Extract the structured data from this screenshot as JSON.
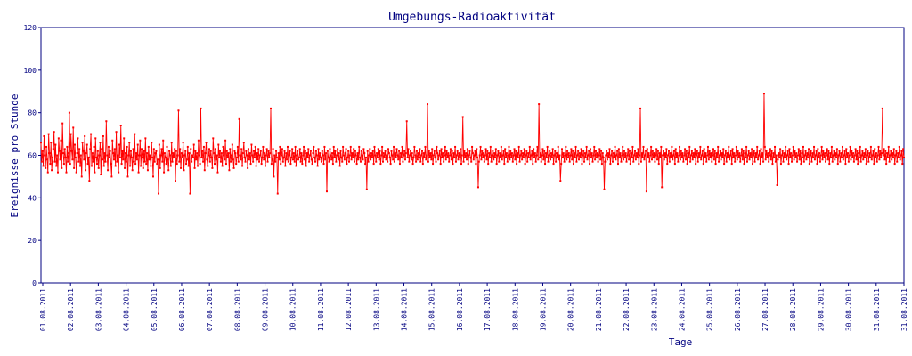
{
  "chart_data": {
    "type": "line",
    "title": "Umgebungs-Radioaktivität",
    "xlabel": "Tage",
    "ylabel": "Ereignisse pro Stunde",
    "ylim": [
      0,
      120
    ],
    "yticks": [
      "0",
      "20",
      "40",
      "60",
      "80",
      "100",
      "120"
    ],
    "xticks": [
      "01.08.2011",
      "02.08.2011",
      "03.08.2011",
      "04.08.2011",
      "05.08.2011",
      "06.08.2011",
      "07.08.2011",
      "08.08.2011",
      "09.08.2011",
      "10.08.2011",
      "11.08.2011",
      "12.08.2011",
      "13.08.2011",
      "14.08.2011",
      "15.08.2011",
      "16.08.2011",
      "17.08.2011",
      "18.08.2011",
      "19.08.2011",
      "20.08.2011",
      "21.08.2011",
      "22.08.2011",
      "23.08.2011",
      "24.08.2011",
      "25.08.2011",
      "26.08.2011",
      "27.08.2011",
      "28.08.2011",
      "29.08.2011",
      "30.08.2011",
      "31.08.2011",
      "31.08.2011"
    ],
    "grid": false,
    "series_color": "#ff0000",
    "axis_color": "#000080",
    "series": [
      {
        "name": "",
        "x_start": "01.08.2011 00:00",
        "x_step": "1 hour",
        "values": [
          66,
          57,
          62,
          55,
          69,
          60,
          54,
          64,
          58,
          52,
          70,
          61,
          56,
          66,
          53,
          59,
          63,
          71,
          57,
          65,
          55,
          60,
          52,
          68,
          62,
          58,
          67,
          54,
          75,
          61,
          56,
          63,
          59,
          52,
          64,
          57,
          61,
          80,
          56,
          70,
          62,
          58,
          73,
          54,
          65,
          59,
          52,
          61,
          68,
          57,
          63,
          55,
          60,
          50,
          66,
          62,
          58,
          69,
          53,
          61,
          65,
          56,
          59,
          48,
          63,
          70,
          55,
          61,
          57,
          64,
          52,
          68,
          59,
          56,
          62,
          54,
          60,
          66,
          51,
          63,
          58,
          69,
          55,
          61,
          57,
          76,
          60,
          53,
          64,
          59,
          62,
          56,
          50,
          67,
          61,
          58,
          63,
          55,
          71,
          57,
          60,
          52,
          65,
          59,
          74,
          56,
          62,
          58,
          68,
          54,
          61,
          57,
          64,
          50,
          60,
          66,
          55,
          62,
          59,
          53,
          63,
          57,
          70,
          56,
          61,
          58,
          65,
          52,
          60,
          67,
          55,
          63,
          59,
          54,
          62,
          57,
          68,
          56,
          61,
          53,
          64,
          58,
          60,
          55,
          66,
          59,
          50,
          63,
          57,
          61,
          62,
          56,
          58,
          42,
          65,
          54,
          60,
          63,
          57,
          67,
          52,
          61,
          59,
          56,
          64,
          58,
          53,
          62,
          60,
          55,
          66,
          57,
          61,
          59,
          63,
          48,
          62,
          56,
          60,
          81,
          57,
          63,
          54,
          61,
          59,
          66,
          53,
          60,
          62,
          56,
          58,
          64,
          55,
          61,
          42,
          63,
          57,
          60,
          59,
          65,
          54,
          62,
          58,
          61,
          55,
          67,
          60,
          56,
          82,
          59,
          62,
          57,
          64,
          53,
          61,
          66,
          58,
          55,
          60,
          63,
          57,
          62,
          59,
          54,
          68,
          61,
          56,
          63,
          58,
          60,
          52,
          65,
          59,
          62,
          57,
          61,
          55,
          64,
          60,
          58,
          67,
          56,
          62,
          59,
          61,
          53,
          63,
          57,
          60,
          65,
          58,
          54,
          62,
          61,
          56,
          59,
          64,
          57,
          77,
          60,
          58,
          63,
          55,
          61,
          66,
          59,
          57,
          62,
          60,
          54,
          63,
          58,
          61,
          56,
          65,
          60,
          57,
          62,
          59,
          64,
          55,
          61,
          58,
          63,
          57,
          60,
          62,
          56,
          59,
          64,
          58,
          61,
          55,
          60,
          63,
          57,
          62,
          59,
          61,
          82,
          56,
          58,
          63,
          50,
          60,
          57,
          62,
          59,
          42,
          61,
          58,
          64,
          56,
          60,
          63,
          57,
          59,
          62,
          55,
          61,
          58,
          64,
          57,
          60,
          62,
          56,
          59,
          63,
          58,
          61,
          57,
          64,
          55,
          60,
          62,
          58,
          59,
          63,
          57,
          61,
          56,
          60,
          64,
          58,
          62,
          55,
          61,
          59,
          63,
          57,
          60,
          62,
          58,
          56,
          61,
          64,
          59,
          57,
          62,
          60,
          55,
          63,
          58,
          61,
          59,
          57,
          62,
          60,
          56,
          64,
          58,
          61,
          43,
          62,
          59,
          57,
          63,
          60,
          58,
          61,
          56,
          64,
          59,
          62,
          57,
          60,
          63,
          58,
          61,
          55,
          62,
          59,
          57,
          64,
          60,
          58,
          61,
          63,
          56,
          59,
          62,
          57,
          60,
          64,
          58,
          61,
          59,
          63,
          57,
          62,
          60,
          56,
          61,
          58,
          64,
          59,
          57,
          62,
          60,
          58,
          63,
          61,
          56,
          59,
          44,
          62,
          57,
          60,
          63,
          58,
          61,
          59,
          62,
          56,
          64,
          60,
          57,
          61,
          59,
          63,
          58,
          62,
          56,
          60,
          64,
          57,
          61,
          59,
          62,
          58,
          60,
          57,
          63,
          61,
          59,
          56,
          62,
          60,
          58,
          64,
          57,
          61,
          59,
          63,
          60,
          58,
          62,
          56,
          61,
          59,
          64,
          57,
          60,
          62,
          58,
          61,
          76,
          59,
          63,
          57,
          60,
          62,
          58,
          61,
          56,
          59,
          64,
          60,
          57,
          62,
          58,
          61,
          59,
          63,
          57,
          60,
          62,
          56,
          61,
          59,
          64,
          58,
          60,
          84,
          57,
          62,
          59,
          61,
          58,
          63,
          56,
          60,
          62,
          59,
          57,
          64,
          61,
          58,
          60,
          62,
          56,
          63,
          59,
          61,
          57,
          60,
          64,
          58,
          62,
          59,
          61,
          57,
          60,
          63,
          58,
          62,
          56,
          61,
          59,
          64,
          57,
          60,
          62,
          58,
          61,
          59,
          63,
          56,
          60,
          78,
          57,
          62,
          59,
          61,
          58,
          63,
          56,
          60,
          62,
          59,
          57,
          64,
          61,
          58,
          60,
          62,
          56,
          63,
          59,
          45,
          57,
          60,
          64,
          58,
          62,
          59,
          61,
          57,
          60,
          63,
          58,
          62,
          56,
          61,
          59,
          64,
          57,
          60,
          62,
          58,
          61,
          59,
          63,
          56,
          60,
          62,
          57,
          61,
          59,
          64,
          58,
          60,
          62,
          56,
          63,
          59,
          61,
          57,
          60,
          64,
          58,
          62,
          59,
          61,
          57,
          60,
          63,
          58,
          62,
          56,
          61,
          59,
          64,
          57,
          60,
          62,
          58,
          61,
          59,
          63,
          56,
          60,
          62,
          57,
          61,
          59,
          64,
          58,
          60,
          62,
          56,
          63,
          59,
          61,
          57,
          60,
          64,
          58,
          84,
          59,
          61,
          57,
          60,
          63,
          58,
          62,
          56,
          61,
          59,
          64,
          57,
          60,
          62,
          58,
          61,
          59,
          63,
          56,
          60,
          62,
          57,
          61,
          59,
          64,
          58,
          60,
          48,
          56,
          63,
          59,
          61,
          57,
          60,
          64,
          58,
          62,
          59,
          61,
          57,
          60,
          63,
          58,
          62,
          56,
          61,
          59,
          64,
          57,
          60,
          62,
          58,
          61,
          59,
          63,
          56,
          60,
          62,
          57,
          61,
          59,
          64,
          58,
          60,
          62,
          56,
          63,
          59,
          61,
          57,
          60,
          64,
          58,
          62,
          59,
          61,
          57,
          60,
          63,
          58,
          62,
          56,
          61,
          59,
          44,
          57,
          60,
          62,
          58,
          61,
          59,
          63,
          56,
          60,
          62,
          57,
          61,
          59,
          64,
          58,
          60,
          62,
          56,
          63,
          59,
          61,
          57,
          60,
          64,
          58,
          62,
          59,
          61,
          57,
          60,
          63,
          58,
          62,
          56,
          61,
          59,
          64,
          57,
          60,
          62,
          58,
          61,
          59,
          63,
          56,
          60,
          82,
          57,
          61,
          59,
          64,
          58,
          60,
          62,
          43,
          63,
          59,
          61,
          57,
          60,
          64,
          58,
          62,
          59,
          61,
          57,
          60,
          63,
          58,
          62,
          56,
          61,
          59,
          64,
          45,
          60,
          62,
          58,
          61,
          59,
          63,
          56,
          60,
          62,
          57,
          61,
          59,
          64,
          58,
          60,
          62,
          56,
          63,
          59,
          61,
          57,
          60,
          64,
          58,
          62,
          59,
          61,
          57,
          60,
          63,
          58,
          62,
          56,
          61,
          59,
          64,
          57,
          60,
          62,
          58,
          61,
          59,
          63,
          56,
          60,
          62,
          57,
          61,
          59,
          64,
          58,
          60,
          62,
          56,
          63,
          59,
          61,
          57,
          60,
          64,
          58,
          62,
          59,
          61,
          57,
          60,
          63,
          58,
          62,
          56,
          61,
          59,
          64,
          57,
          60,
          62,
          58,
          61,
          59,
          63,
          56,
          60,
          62,
          57,
          61,
          59,
          64,
          58,
          60,
          62,
          56,
          63,
          59,
          61,
          57,
          60,
          64,
          58,
          62,
          59,
          61,
          57,
          60,
          63,
          58,
          62,
          56,
          61,
          59,
          64,
          57,
          60,
          62,
          58,
          61,
          59,
          63,
          56,
          60,
          62,
          57,
          61,
          59,
          64,
          58,
          60,
          62,
          56,
          63,
          59,
          61,
          57,
          89,
          64,
          58,
          62,
          59,
          61,
          57,
          60,
          63,
          58,
          62,
          56,
          61,
          59,
          64,
          57,
          60,
          46,
          58,
          61,
          59,
          63,
          56,
          60,
          62,
          57,
          61,
          59,
          64,
          58,
          60,
          62,
          56,
          63,
          59,
          61,
          57,
          60,
          64,
          58,
          62,
          59,
          61,
          57,
          60,
          63,
          58,
          62,
          56,
          61,
          59,
          64,
          57,
          60,
          62,
          58,
          61,
          59,
          63,
          56,
          60,
          62,
          57,
          61,
          59,
          64,
          58,
          60,
          62,
          56,
          63,
          59,
          61,
          57,
          60,
          64,
          58,
          62,
          59,
          61,
          57,
          60,
          63,
          58,
          62,
          56,
          61,
          59,
          64,
          57,
          60,
          62,
          58,
          61,
          59,
          63,
          56,
          60,
          62,
          57,
          61,
          59,
          64,
          58,
          60,
          62,
          56,
          63,
          59,
          61,
          57,
          60,
          64,
          58,
          62,
          59,
          61,
          57,
          60,
          63,
          58,
          62,
          56,
          61,
          59,
          64,
          57,
          60,
          62,
          58,
          61,
          59,
          63,
          56,
          60,
          62,
          57,
          61,
          59,
          64,
          58,
          60,
          62,
          56,
          63,
          59,
          61,
          57,
          60,
          64,
          58,
          62,
          59,
          61,
          82,
          60,
          63,
          58,
          62,
          56,
          61,
          59,
          64,
          57,
          60,
          62,
          58,
          61,
          59,
          63,
          56,
          60,
          62,
          57,
          61,
          59,
          64,
          58,
          60,
          62,
          56,
          63,
          59
        ]
      }
    ]
  }
}
